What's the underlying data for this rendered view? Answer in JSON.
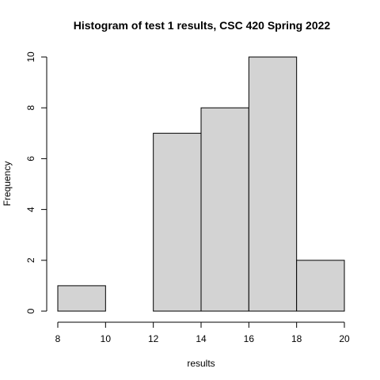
{
  "chart_data": {
    "type": "bar",
    "title": "Histogram of test 1 results, CSC 420 Spring 2022",
    "xlabel": "results",
    "ylabel": "Frequency",
    "bins": [
      {
        "start": 8,
        "end": 10,
        "count": 1
      },
      {
        "start": 10,
        "end": 12,
        "count": 0
      },
      {
        "start": 12,
        "end": 14,
        "count": 7
      },
      {
        "start": 14,
        "end": 16,
        "count": 8
      },
      {
        "start": 16,
        "end": 18,
        "count": 10
      },
      {
        "start": 18,
        "end": 20,
        "count": 2
      }
    ],
    "xlim": [
      8,
      20
    ],
    "ylim": [
      0,
      10
    ],
    "xticks": [
      8,
      10,
      12,
      14,
      16,
      18,
      20
    ],
    "yticks": [
      0,
      2,
      4,
      6,
      8,
      10
    ],
    "bar_color": "#d3d3d3",
    "grid": false,
    "legend": "none"
  }
}
